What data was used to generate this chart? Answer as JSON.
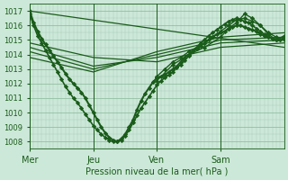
{
  "xlabel": "Pression niveau de la mer( hPa )",
  "background_color": "#cce8d8",
  "plot_bg_color": "#cce8d8",
  "grid_color_minor": "#aacaba",
  "grid_color_major": "#88b898",
  "line_color": "#1a5c1a",
  "ylim": [
    1007.5,
    1017.5
  ],
  "yticks": [
    1008,
    1009,
    1010,
    1011,
    1012,
    1013,
    1014,
    1015,
    1016,
    1017
  ],
  "day_labels": [
    "Mer",
    "Jeu",
    "Ven",
    "Sam"
  ],
  "day_positions": [
    0,
    48,
    96,
    144
  ],
  "total_hours": 192,
  "lines": [
    {
      "x": [
        0,
        3,
        6,
        9,
        12,
        15,
        18,
        21,
        24,
        27,
        30,
        33,
        36,
        39,
        42,
        45,
        48,
        51,
        54,
        57,
        60,
        63,
        66,
        69,
        72,
        75,
        78,
        81,
        84,
        87,
        90,
        93,
        96,
        99,
        102,
        105,
        108,
        111,
        114,
        117,
        120,
        123,
        126,
        129,
        132,
        135,
        138,
        141,
        144,
        147,
        150,
        153,
        156,
        159,
        162,
        165,
        168,
        171,
        174,
        177,
        180,
        183,
        186,
        189,
        192
      ],
      "y": [
        1017,
        1016.2,
        1015.6,
        1015.1,
        1014.7,
        1014.3,
        1013.9,
        1013.5,
        1013.1,
        1012.7,
        1012.3,
        1012.0,
        1011.7,
        1011.4,
        1011.0,
        1010.5,
        1010.0,
        1009.5,
        1009.0,
        1008.6,
        1008.3,
        1008.1,
        1008.0,
        1008.2,
        1008.5,
        1009.0,
        1009.5,
        1010.2,
        1010.8,
        1011.3,
        1011.7,
        1012.1,
        1012.4,
        1012.5,
        1012.6,
        1012.8,
        1013.0,
        1013.2,
        1013.5,
        1013.8,
        1014.0,
        1014.2,
        1014.4,
        1014.6,
        1014.8,
        1015.0,
        1015.2,
        1015.4,
        1015.5,
        1015.6,
        1015.8,
        1015.9,
        1016.0,
        1016.0,
        1015.9,
        1015.8,
        1015.7,
        1015.6,
        1015.4,
        1015.3,
        1015.2,
        1015.1,
        1015.0,
        1015.0,
        1015.1
      ],
      "style": "-",
      "marker": "D",
      "markersize": 2.2,
      "linewidth": 1.5
    },
    {
      "x": [
        0,
        3,
        6,
        9,
        12,
        15,
        18,
        21,
        24,
        27,
        30,
        33,
        36,
        39,
        42,
        45,
        48,
        51,
        54,
        57,
        60,
        63,
        66,
        69,
        72,
        75,
        78,
        81,
        84,
        87,
        90,
        93,
        96,
        99,
        102,
        105,
        108,
        111,
        114,
        117,
        120,
        123,
        126,
        129,
        132,
        135,
        138,
        141,
        144,
        147,
        150,
        153,
        156,
        159,
        162,
        165,
        168,
        171,
        174,
        177,
        180,
        183,
        186,
        189,
        192
      ],
      "y": [
        1016.8,
        1016.0,
        1015.3,
        1014.8,
        1014.3,
        1013.8,
        1013.3,
        1012.8,
        1012.3,
        1011.8,
        1011.4,
        1011.0,
        1010.7,
        1010.3,
        1009.9,
        1009.5,
        1009.1,
        1008.8,
        1008.5,
        1008.3,
        1008.1,
        1008.0,
        1008.0,
        1008.1,
        1008.4,
        1008.8,
        1009.3,
        1009.8,
        1010.3,
        1010.7,
        1011.1,
        1011.5,
        1011.9,
        1012.2,
        1012.4,
        1012.6,
        1012.8,
        1013.1,
        1013.3,
        1013.6,
        1013.9,
        1014.2,
        1014.5,
        1014.8,
        1015.0,
        1015.3,
        1015.5,
        1015.7,
        1015.9,
        1016.1,
        1016.3,
        1016.4,
        1016.5,
        1016.4,
        1016.3,
        1016.2,
        1016.0,
        1015.8,
        1015.6,
        1015.4,
        1015.2,
        1015.1,
        1015.0,
        1015.0,
        1015.2
      ],
      "style": "-",
      "marker": "D",
      "markersize": 2.2,
      "linewidth": 1.2
    },
    {
      "x": [
        0,
        192
      ],
      "y": [
        1017.0,
        1014.5
      ],
      "style": "-",
      "marker": null,
      "markersize": 0,
      "linewidth": 0.9
    },
    {
      "x": [
        0,
        48,
        96,
        144,
        192
      ],
      "y": [
        1014.8,
        1013.8,
        1013.5,
        1014.5,
        1014.8
      ],
      "style": "-",
      "marker": null,
      "markersize": 0,
      "linewidth": 0.9
    },
    {
      "x": [
        0,
        48,
        96,
        144,
        192
      ],
      "y": [
        1014.5,
        1013.2,
        1013.8,
        1014.8,
        1015.0
      ],
      "style": "-",
      "marker": null,
      "markersize": 0,
      "linewidth": 0.9
    },
    {
      "x": [
        0,
        48,
        96,
        144,
        192
      ],
      "y": [
        1014.2,
        1013.0,
        1014.0,
        1015.0,
        1015.2
      ],
      "style": "-",
      "marker": null,
      "markersize": 0,
      "linewidth": 0.9
    },
    {
      "x": [
        0,
        48,
        96,
        144,
        192
      ],
      "y": [
        1013.8,
        1012.8,
        1014.2,
        1015.2,
        1015.5
      ],
      "style": "-",
      "marker": null,
      "markersize": 0,
      "linewidth": 0.9
    },
    {
      "x": [
        96,
        102,
        108,
        114,
        120,
        126,
        132,
        138,
        144,
        150,
        156,
        162,
        168,
        174,
        180,
        186,
        192
      ],
      "y": [
        1012.5,
        1013.0,
        1013.5,
        1013.8,
        1014.2,
        1014.5,
        1014.8,
        1015.2,
        1015.6,
        1016.0,
        1016.4,
        1016.5,
        1016.3,
        1016.0,
        1015.5,
        1015.2,
        1015.0
      ],
      "style": "-",
      "marker": "D",
      "markersize": 2.2,
      "linewidth": 1.0
    },
    {
      "x": [
        96,
        108,
        120,
        132,
        144,
        150,
        156,
        162,
        168,
        174,
        180,
        186,
        192
      ],
      "y": [
        1012.2,
        1013.3,
        1014.0,
        1014.5,
        1015.2,
        1015.8,
        1016.2,
        1016.8,
        1016.5,
        1016.0,
        1015.4,
        1015.0,
        1015.3
      ],
      "style": "-",
      "marker": "D",
      "markersize": 2.2,
      "linewidth": 1.0
    }
  ]
}
